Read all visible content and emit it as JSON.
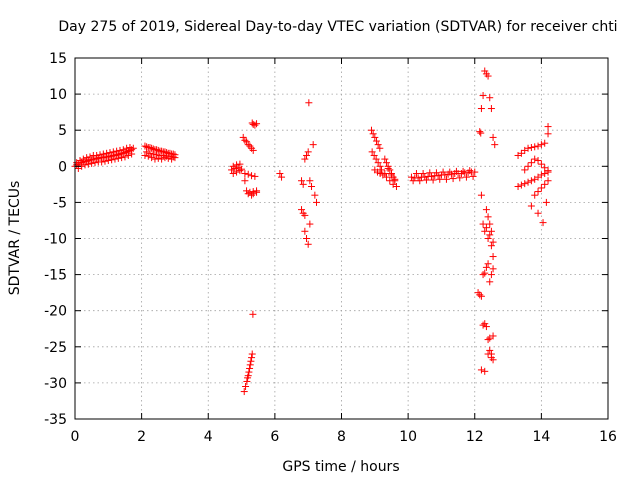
{
  "chart_data": {
    "type": "scatter",
    "title": "Day 275 of 2019, Sidereal Day-to-day VTEC variation (SDTVAR) for receiver chti",
    "xlabel": "GPS time / hours",
    "ylabel": "SDTVAR / TECUs",
    "xlim": [
      0,
      16
    ],
    "ylim": [
      -35,
      15
    ],
    "xticks": [
      0,
      2,
      4,
      6,
      8,
      10,
      12,
      14,
      16
    ],
    "yticks": [
      15,
      10,
      5,
      0,
      -5,
      -10,
      -15,
      -20,
      -25,
      -30,
      -35
    ],
    "grid": true,
    "marker": "+",
    "color": "#ff0000",
    "series": [
      {
        "name": "SDTVAR",
        "x": [
          0.0,
          0.05,
          0.1,
          0.15,
          0.2,
          0.25,
          0.3,
          0.35,
          0.4,
          0.45,
          0.5,
          0.55,
          0.6,
          0.65,
          0.7,
          0.75,
          0.8,
          0.85,
          0.9,
          0.95,
          1.0,
          1.05,
          1.1,
          1.15,
          1.2,
          1.25,
          1.3,
          1.35,
          1.4,
          1.45,
          1.5,
          1.55,
          1.6,
          1.65,
          1.7,
          1.75,
          0.1,
          0.2,
          0.3,
          0.4,
          0.5,
          0.6,
          0.7,
          0.8,
          0.9,
          1.0,
          1.1,
          1.2,
          1.3,
          1.4,
          1.5,
          1.6,
          1.7,
          0.05,
          0.15,
          0.25,
          0.35,
          0.45,
          0.55,
          0.65,
          0.75,
          0.85,
          0.95,
          1.05,
          1.15,
          1.25,
          1.35,
          1.45,
          1.55,
          1.65,
          2.1,
          2.15,
          2.2,
          2.25,
          2.3,
          2.35,
          2.4,
          2.45,
          2.5,
          2.55,
          2.6,
          2.65,
          2.7,
          2.75,
          2.8,
          2.85,
          2.9,
          2.95,
          3.0,
          2.1,
          2.2,
          2.3,
          2.4,
          2.5,
          2.6,
          2.7,
          2.8,
          2.9,
          3.0,
          2.15,
          2.25,
          2.35,
          2.45,
          2.55,
          2.65,
          2.75,
          2.85,
          2.95,
          4.7,
          4.75,
          4.8,
          4.85,
          4.9,
          4.95,
          5.0,
          4.75,
          4.85,
          4.95,
          5.05,
          5.1,
          5.15,
          5.2,
          5.25,
          5.3,
          5.35,
          5.1,
          5.2,
          5.3,
          5.4,
          5.35,
          5.45,
          5.15,
          5.25,
          5.35,
          5.45,
          5.1,
          5.2,
          5.3,
          5.32,
          5.35,
          5.4,
          5.45,
          5.08,
          5.12,
          5.16,
          5.18,
          5.2,
          5.22,
          5.24,
          5.26,
          5.28,
          5.3,
          5.32,
          5.34,
          6.15,
          6.2,
          6.8,
          6.85,
          6.9,
          6.95,
          7.0,
          7.05,
          7.1,
          7.15,
          7.2,
          7.25,
          6.8,
          6.85,
          6.9,
          6.95,
          7.0,
          7.02,
          7.05,
          6.9,
          8.9,
          8.95,
          9.0,
          9.05,
          9.1,
          9.15,
          8.92,
          8.98,
          9.04,
          9.1,
          9.16,
          9.2,
          9.0,
          9.08,
          9.16,
          9.24,
          9.3,
          9.3,
          9.35,
          9.4,
          9.45,
          9.5,
          9.55,
          9.6,
          9.35,
          9.45,
          9.55,
          9.65,
          9.4,
          9.5,
          9.6,
          10.1,
          10.2,
          10.3,
          10.4,
          10.5,
          10.6,
          10.7,
          10.8,
          10.9,
          11.0,
          11.1,
          11.2,
          11.3,
          11.4,
          11.5,
          11.6,
          11.7,
          11.8,
          11.9,
          12.0,
          10.15,
          10.35,
          10.55,
          10.75,
          10.95,
          11.15,
          11.35,
          11.55,
          11.75,
          11.95,
          10.25,
          10.45,
          10.65,
          10.85,
          11.05,
          11.25,
          11.45,
          11.65,
          11.85,
          12.15,
          12.18,
          12.2,
          12.25,
          12.3,
          12.35,
          12.4,
          12.45,
          12.5,
          12.55,
          12.6,
          12.2,
          12.25,
          12.3,
          12.35,
          12.4,
          12.45,
          12.5,
          12.55,
          12.25,
          12.3,
          12.35,
          12.4,
          12.45,
          12.5,
          12.55,
          12.1,
          12.15,
          12.2,
          12.25,
          12.3,
          12.35,
          12.4,
          12.45,
          12.5,
          12.55,
          12.2,
          12.3,
          12.4,
          12.45,
          12.5,
          12.55,
          12.35,
          12.4,
          12.45,
          12.5,
          12.55,
          13.3,
          13.4,
          13.5,
          13.6,
          13.7,
          13.8,
          13.9,
          14.0,
          14.1,
          14.2,
          13.3,
          13.4,
          13.5,
          13.6,
          13.7,
          13.8,
          13.9,
          14.0,
          14.1,
          14.2,
          13.5,
          13.6,
          13.7,
          13.8,
          13.9,
          14.0,
          14.1,
          14.2,
          13.7,
          13.8,
          13.9,
          14.0,
          14.1,
          14.2,
          13.9,
          14.05,
          14.15,
          14.2
        ],
        "y": [
          0.0,
          0.2,
          0.3,
          0.5,
          0.5,
          0.6,
          0.7,
          0.7,
          0.8,
          0.9,
          0.9,
          1.0,
          1.0,
          1.1,
          1.1,
          1.2,
          1.2,
          1.2,
          1.3,
          1.3,
          1.3,
          1.4,
          1.4,
          1.5,
          1.5,
          1.6,
          1.6,
          1.7,
          1.8,
          1.8,
          1.9,
          2.0,
          2.1,
          2.2,
          2.3,
          2.5,
          -0.3,
          0.0,
          0.2,
          0.3,
          0.4,
          0.5,
          0.6,
          0.6,
          0.7,
          0.8,
          0.9,
          1.0,
          1.1,
          1.2,
          1.3,
          1.5,
          1.7,
          0.5,
          0.8,
          1.0,
          1.2,
          1.3,
          1.5,
          1.5,
          1.6,
          1.7,
          1.8,
          1.9,
          2.0,
          2.1,
          2.2,
          2.3,
          2.5,
          2.6,
          2.8,
          2.7,
          2.6,
          2.6,
          2.5,
          2.4,
          2.3,
          2.3,
          2.2,
          2.1,
          2.1,
          2.0,
          2.0,
          1.9,
          1.8,
          1.8,
          1.7,
          1.7,
          1.6,
          1.5,
          1.4,
          1.2,
          1.0,
          1.1,
          1.0,
          1.2,
          1.1,
          1.0,
          1.2,
          2.0,
          1.8,
          1.7,
          1.6,
          1.5,
          1.5,
          1.4,
          1.4,
          1.3,
          -0.5,
          0.0,
          -0.3,
          0.2,
          -0.2,
          0.3,
          -0.4,
          -1.0,
          -0.8,
          -0.6,
          4.0,
          3.6,
          3.4,
          3.0,
          2.8,
          2.5,
          2.2,
          -1.0,
          -1.1,
          -1.3,
          -1.4,
          -3.5,
          -3.6,
          -3.4,
          -3.6,
          -3.8,
          -3.4,
          -2.0,
          -3.8,
          -4.0,
          6.0,
          5.8,
          5.7,
          5.9,
          -31.2,
          -30.5,
          -29.8,
          -29.3,
          -29.0,
          -28.5,
          -28.0,
          -27.5,
          -27.0,
          -26.5,
          -26.0,
          -20.5,
          -1.0,
          -1.5,
          -2.0,
          -2.5,
          1.0,
          1.5,
          2.0,
          -2.0,
          -2.8,
          3.0,
          -4.0,
          -5.0,
          -6.0,
          -6.5,
          -9.0,
          -10.0,
          -10.8,
          8.8,
          -8.0,
          -6.8,
          5.0,
          4.5,
          4.0,
          3.5,
          3.0,
          2.5,
          2.0,
          1.5,
          1.0,
          0.5,
          0.0,
          -0.5,
          -0.5,
          -0.8,
          -1.0,
          -1.2,
          -1.0,
          1.0,
          0.5,
          0.0,
          -0.5,
          -1.0,
          -1.5,
          -2.0,
          -1.5,
          -2.0,
          -2.5,
          -2.8,
          -0.3,
          -1.2,
          -1.8,
          -1.5,
          -1.6,
          -1.6,
          -1.5,
          -1.5,
          -1.4,
          -1.4,
          -1.3,
          -1.3,
          -1.2,
          -1.2,
          -1.1,
          -1.1,
          -1.0,
          -1.0,
          -1.0,
          -0.9,
          -0.9,
          -0.8,
          -0.8,
          -2.0,
          -2.0,
          -1.9,
          -1.9,
          -1.8,
          -1.8,
          -1.7,
          -1.6,
          -1.5,
          -1.4,
          -1.0,
          -1.0,
          -0.9,
          -0.9,
          -0.8,
          -0.8,
          -0.7,
          -0.7,
          -0.6,
          4.8,
          4.6,
          8.0,
          9.8,
          13.2,
          12.8,
          12.5,
          9.5,
          8.0,
          4.0,
          3.0,
          -4.0,
          -8.0,
          -9.0,
          -8.5,
          -10.0,
          -9.5,
          -11.0,
          -12.5,
          -15.0,
          -14.8,
          -14.0,
          -13.5,
          -16.0,
          -15.0,
          -14.2,
          -17.5,
          -17.8,
          -18.0,
          -22.0,
          -21.8,
          -22.2,
          -24.0,
          -23.8,
          -26.5,
          -26.8,
          -28.2,
          -28.4,
          -26.0,
          -25.5,
          -26.0,
          -23.5,
          -6.0,
          -7.0,
          -8.0,
          -9.0,
          -10.5,
          1.5,
          1.8,
          2.2,
          2.5,
          2.6,
          2.7,
          2.8,
          3.0,
          3.2,
          4.5,
          -2.8,
          -2.6,
          -2.4,
          -2.2,
          -2.0,
          -1.8,
          -1.5,
          -1.2,
          -1.0,
          -0.8,
          -0.5,
          0.0,
          0.5,
          1.0,
          0.8,
          0.3,
          -0.2,
          -0.6,
          -5.5,
          -4.0,
          -3.5,
          -3.0,
          -2.5,
          -2.0,
          -6.5,
          -7.8,
          -5.0,
          5.5
        ]
      }
    ]
  }
}
